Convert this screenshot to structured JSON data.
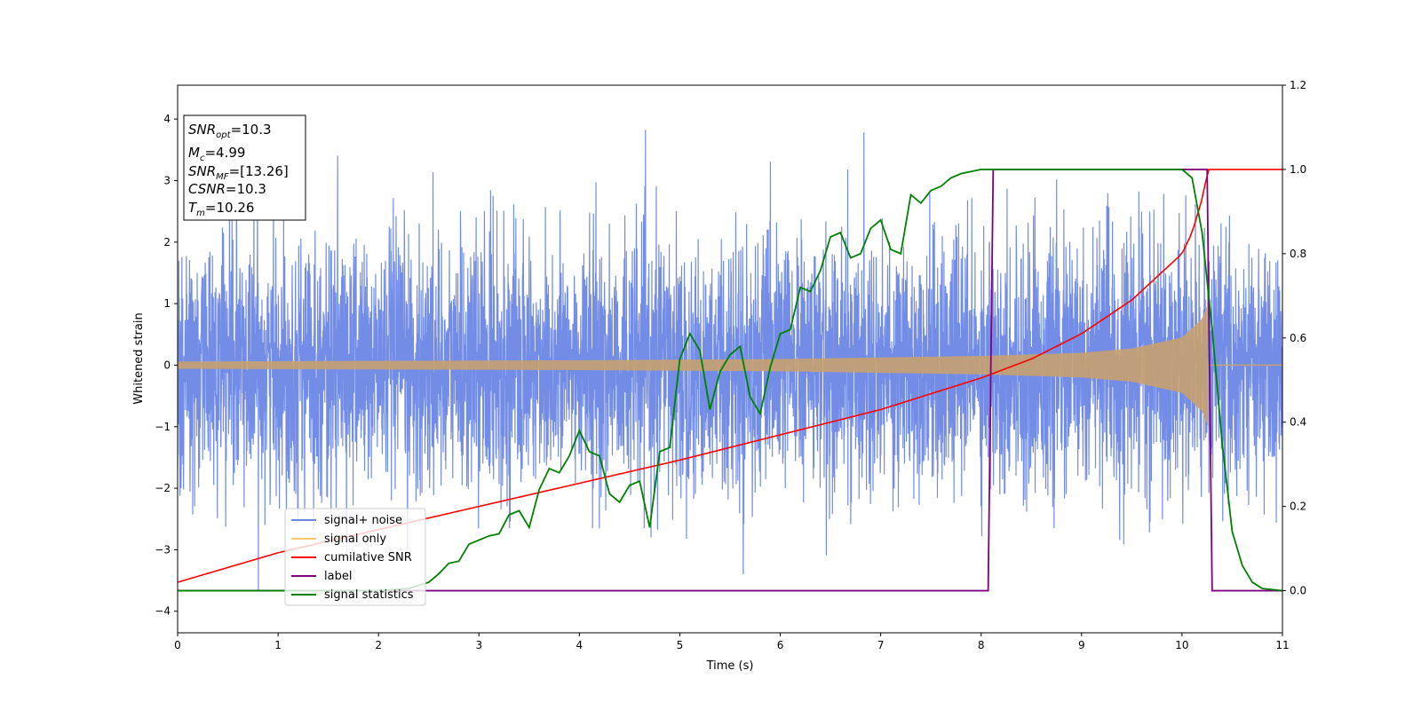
{
  "chart_data": {
    "type": "line",
    "xlabel": "Time (s)",
    "ylabel": "Whitened strain",
    "xlim": [
      0,
      11
    ],
    "ylim": [
      -4.35,
      4.55
    ],
    "y2lim": [
      -0.1,
      1.2
    ],
    "x_ticks": [
      "0",
      "1",
      "2",
      "3",
      "4",
      "5",
      "6",
      "7",
      "8",
      "9",
      "10",
      "11"
    ],
    "y_ticks": [
      "−4",
      "−3",
      "−2",
      "−1",
      "0",
      "1",
      "2",
      "3",
      "4"
    ],
    "y2_ticks": [
      "0.0",
      "0.2",
      "0.4",
      "0.6",
      "0.8",
      "1.0",
      "1.2"
    ],
    "annotation": {
      "lines": [
        {
          "base": "SNR",
          "sub": "opt",
          "rest": "=10.3"
        },
        {
          "base": "M",
          "sub": "c",
          "rest": "=4.99"
        },
        {
          "base": "SNR",
          "sub": "MF",
          "rest": "=[13.26]"
        },
        {
          "base": "CSNR",
          "sub": "",
          "rest": "=10.3"
        },
        {
          "base": "T",
          "sub": "m",
          "rest": "=10.26"
        }
      ]
    },
    "legend": {
      "position": "lower-left",
      "entries": [
        {
          "label": "signal+ noise",
          "color": "#6b87e6"
        },
        {
          "label": "signal only",
          "color": "#ffc870"
        },
        {
          "label": "cumilative SNR",
          "color": "#ff0000"
        },
        {
          "label": "label",
          "color": "#800080"
        },
        {
          "label": "signal statistics",
          "color": "#008000"
        }
      ]
    },
    "series": [
      {
        "name": "signal+ noise",
        "axis": "left",
        "color": "#6b87e6",
        "noise_sigma": 1.0,
        "y_range_observed": [
          -3.95,
          4.2
        ]
      },
      {
        "name": "signal only",
        "axis": "left",
        "color": "#c8a070",
        "envelope": {
          "t": [
            0,
            2,
            4,
            6,
            8,
            9,
            9.5,
            10,
            10.2,
            10.26
          ],
          "amp": [
            0.06,
            0.07,
            0.08,
            0.1,
            0.15,
            0.2,
            0.27,
            0.45,
            0.75,
            1.0
          ]
        },
        "merger_time": 10.26
      },
      {
        "name": "cumilative SNR",
        "axis": "right",
        "x": [
          0,
          1,
          2,
          3,
          4,
          5,
          6,
          7,
          8,
          8.5,
          9,
          9.5,
          10,
          10.1,
          10.2,
          10.26,
          11
        ],
        "y": [
          0.02,
          0.09,
          0.145,
          0.2,
          0.255,
          0.31,
          0.37,
          0.43,
          0.505,
          0.55,
          0.61,
          0.69,
          0.8,
          0.85,
          0.93,
          1.0,
          1.0
        ]
      },
      {
        "name": "label",
        "axis": "right",
        "x": [
          0,
          8.07,
          8.12,
          10.25,
          10.3,
          11
        ],
        "y": [
          0,
          0,
          1,
          1,
          0,
          0
        ]
      },
      {
        "name": "signal statistics",
        "axis": "right",
        "x": [
          0,
          1,
          2,
          2.3,
          2.5,
          2.6,
          2.7,
          2.8,
          2.9,
          3.0,
          3.1,
          3.2,
          3.3,
          3.4,
          3.5,
          3.6,
          3.7,
          3.8,
          3.9,
          4.0,
          4.1,
          4.2,
          4.3,
          4.4,
          4.5,
          4.6,
          4.7,
          4.8,
          4.9,
          5.0,
          5.1,
          5.2,
          5.3,
          5.4,
          5.5,
          5.6,
          5.7,
          5.8,
          5.9,
          6.0,
          6.1,
          6.2,
          6.3,
          6.4,
          6.5,
          6.6,
          6.7,
          6.8,
          6.9,
          7.0,
          7.1,
          7.2,
          7.3,
          7.4,
          7.5,
          7.6,
          7.7,
          7.8,
          8.0,
          8.2,
          9.0,
          9.6,
          9.9,
          10.0,
          10.1,
          10.2,
          10.3,
          10.4,
          10.5,
          10.6,
          10.7,
          10.8,
          11
        ],
        "y": [
          0,
          0,
          0,
          0.005,
          0.02,
          0.04,
          0.065,
          0.07,
          0.11,
          0.12,
          0.13,
          0.135,
          0.18,
          0.19,
          0.15,
          0.24,
          0.29,
          0.28,
          0.32,
          0.38,
          0.33,
          0.32,
          0.23,
          0.21,
          0.25,
          0.26,
          0.15,
          0.33,
          0.34,
          0.55,
          0.61,
          0.57,
          0.43,
          0.52,
          0.56,
          0.58,
          0.46,
          0.42,
          0.53,
          0.61,
          0.62,
          0.72,
          0.71,
          0.76,
          0.84,
          0.85,
          0.79,
          0.8,
          0.86,
          0.88,
          0.81,
          0.8,
          0.94,
          0.92,
          0.95,
          0.96,
          0.98,
          0.99,
          1.0,
          1.0,
          1.0,
          1.0,
          1.0,
          1.0,
          0.98,
          0.85,
          0.62,
          0.35,
          0.14,
          0.06,
          0.02,
          0.005,
          0
        ]
      }
    ]
  }
}
